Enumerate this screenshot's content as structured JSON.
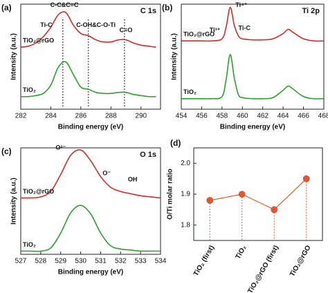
{
  "chart_data": [
    {
      "type": "line",
      "panel_label": "(a)",
      "title": "C 1s",
      "xlabel": "Binding energy (eV)",
      "ylabel": "Intensity (a.u.)",
      "x": [
        282,
        282.5,
        283,
        283.5,
        284,
        284.5,
        285,
        285.5,
        286,
        286.5,
        287,
        287.5,
        288,
        288.5,
        289,
        289.5,
        290,
        290.5,
        291
      ],
      "xlim": [
        282,
        291.3
      ],
      "xticks": [
        282,
        284,
        286,
        288,
        290
      ],
      "ylim": [
        0,
        10
      ],
      "series": [
        {
          "name": "TiO₂@rGO",
          "color": "#d62a2a",
          "values": [
            5.9,
            6.0,
            6.3,
            6.9,
            7.8,
            9.0,
            9.2,
            8.0,
            7.2,
            7.0,
            6.6,
            6.4,
            6.4,
            6.6,
            6.6,
            6.3,
            6.1,
            6.0,
            5.9
          ]
        },
        {
          "name": "TiO₂",
          "color": "#2ca02c",
          "values": [
            1.2,
            1.2,
            1.3,
            1.5,
            2.3,
            4.0,
            4.5,
            3.3,
            2.1,
            1.9,
            1.6,
            1.5,
            1.5,
            1.6,
            1.6,
            1.4,
            1.3,
            1.2,
            1.2
          ]
        }
      ],
      "ref_lines": [
        284.8,
        286.5,
        288.9
      ],
      "annotations": [
        "C-C&C=C",
        "Ti-C",
        "C-OH&C-O-Ti",
        "C=O"
      ]
    },
    {
      "type": "line",
      "panel_label": "(b)",
      "title": "Ti 2p",
      "xlabel": "Binding energy (eV)",
      "ylabel": "Intensity (a.u.)",
      "x": [
        454,
        455,
        456,
        457,
        458,
        458.4,
        458.8,
        459.2,
        459.6,
        460,
        461,
        462,
        463,
        464,
        464.5,
        465,
        466,
        467,
        468
      ],
      "xlim": [
        454,
        468
      ],
      "xticks": [
        454,
        456,
        458,
        460,
        462,
        464,
        466,
        468
      ],
      "ylim": [
        0,
        10
      ],
      "series": [
        {
          "name": "TiO₂@rGO",
          "color": "#d62a2a",
          "values": [
            6.5,
            6.5,
            6.5,
            6.5,
            6.7,
            7.8,
            9.7,
            8.0,
            7.0,
            6.7,
            6.6,
            6.6,
            6.7,
            7.2,
            7.6,
            7.3,
            6.7,
            6.5,
            6.5
          ]
        },
        {
          "name": "TiO₂",
          "color": "#2ca02c",
          "values": [
            1.0,
            1.0,
            1.0,
            1.0,
            1.2,
            2.8,
            5.2,
            3.0,
            1.4,
            1.1,
            1.0,
            1.0,
            1.1,
            1.8,
            2.2,
            1.9,
            1.2,
            1.0,
            1.0
          ]
        }
      ],
      "annotations": [
        "Ti⁴⁺",
        "Ti³⁺",
        "Ti-C"
      ]
    },
    {
      "type": "line",
      "panel_label": "(c)",
      "title": "O 1s",
      "xlabel": "Binding energy (eV)",
      "ylabel": "Intensity (a.u.)",
      "x": [
        527,
        527.5,
        528,
        528.5,
        529,
        529.5,
        530,
        530.5,
        531,
        531.5,
        532,
        532.5,
        533,
        533.5,
        534
      ],
      "xlim": [
        527,
        534
      ],
      "xticks": [
        527,
        528,
        529,
        530,
        531,
        532,
        533,
        534
      ],
      "ylim": [
        0,
        10
      ],
      "series": [
        {
          "name": "TiO₂@rGO",
          "color": "#d62a2a",
          "values": [
            5.3,
            5.3,
            5.4,
            5.9,
            7.5,
            9.3,
            9.8,
            8.8,
            7.3,
            6.3,
            5.9,
            5.7,
            5.5,
            5.4,
            5.3
          ]
        },
        {
          "name": "TiO₂",
          "color": "#2ca02c",
          "values": [
            0.3,
            0.3,
            0.3,
            0.6,
            2.0,
            3.9,
            4.6,
            3.8,
            2.0,
            0.8,
            0.5,
            0.4,
            0.3,
            0.3,
            0.3
          ]
        }
      ],
      "annotations": [
        "O²⁻",
        "O⁻",
        "OH"
      ]
    },
    {
      "type": "dotline",
      "panel_label": "(d)",
      "ylabel": "O/Ti molar ratio",
      "categories": [
        "TiO₂ (first)",
        "TiO₂",
        "TiO₂@rGO (first)",
        "TiO₂@rGO"
      ],
      "values": [
        1.88,
        1.9,
        1.85,
        1.95
      ],
      "color": "#e8562a",
      "ylim": [
        1.75,
        2.05
      ],
      "yticks": [
        1.8,
        1.9,
        {
          "value": 2.0,
          "label": "2.0"
        }
      ]
    }
  ]
}
